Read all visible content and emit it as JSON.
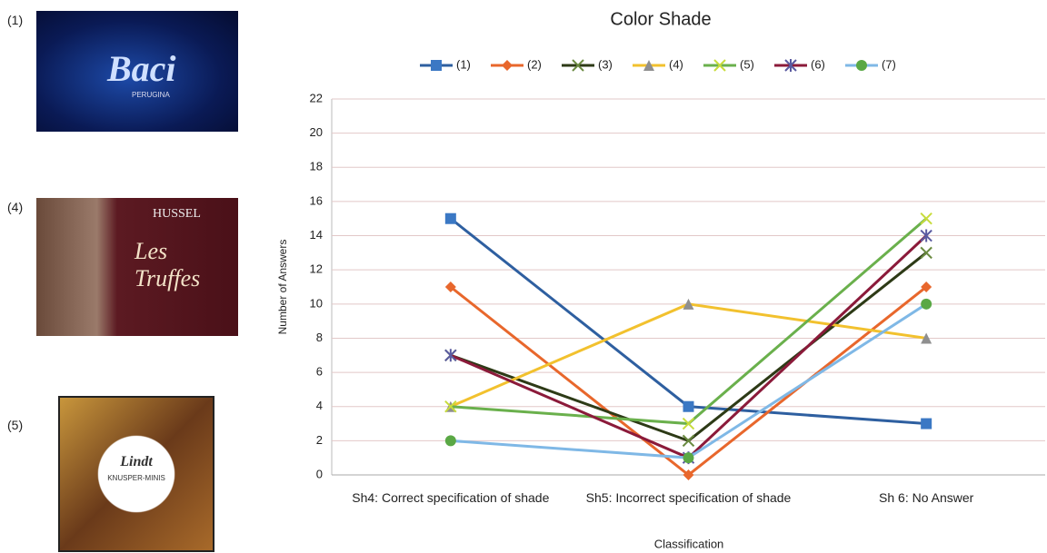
{
  "images": [
    {
      "label": "(1)",
      "texts": [
        "Baci",
        "PERUGINA"
      ]
    },
    {
      "label": "(4)",
      "texts": [
        "HUSSEL",
        "Les Truffes"
      ]
    },
    {
      "label": "(5)",
      "texts": [
        "Lindt",
        "KNUSPER-MINIS"
      ]
    }
  ],
  "chart_data": {
    "type": "line",
    "title": "Color Shade",
    "x_label": "Classification",
    "y_label": "Number of Answers",
    "categories": [
      "Sh4: Correct specification of shade",
      "Sh5: Incorrect specification of shade",
      "Sh 6: No Answer"
    ],
    "series": [
      {
        "name": "(1)",
        "color": "#2e5fa0",
        "marker": "square",
        "marker_color": "#3b78c4",
        "values": [
          15,
          4,
          3
        ]
      },
      {
        "name": "(2)",
        "color": "#e8672c",
        "marker": "diamond",
        "marker_color": "#e8672c",
        "values": [
          11,
          0,
          11
        ]
      },
      {
        "name": "(3)",
        "color": "#2d3a16",
        "marker": "x",
        "marker_color": "#6a8a40",
        "values": [
          7,
          2,
          13
        ]
      },
      {
        "name": "(4)",
        "color": "#f2c12e",
        "marker": "triangle",
        "marker_color": "#8f8f8f",
        "values": [
          4,
          10,
          8
        ]
      },
      {
        "name": "(5)",
        "color": "#6ab04c",
        "marker": "x",
        "marker_color": "#c8dc3c",
        "values": [
          4,
          3,
          15
        ]
      },
      {
        "name": "(6)",
        "color": "#8b1a3a",
        "marker": "star",
        "marker_color": "#5a5aa0",
        "values": [
          7,
          1,
          14
        ]
      },
      {
        "name": "(7)",
        "color": "#7fb8e6",
        "marker": "circle",
        "marker_color": "#5aa845",
        "values": [
          2,
          1,
          10
        ]
      }
    ],
    "ylim": [
      0,
      22
    ],
    "yticks": [
      0,
      2,
      4,
      6,
      8,
      10,
      12,
      14,
      16,
      18,
      20,
      22
    ],
    "grid": true,
    "legend": "top"
  }
}
